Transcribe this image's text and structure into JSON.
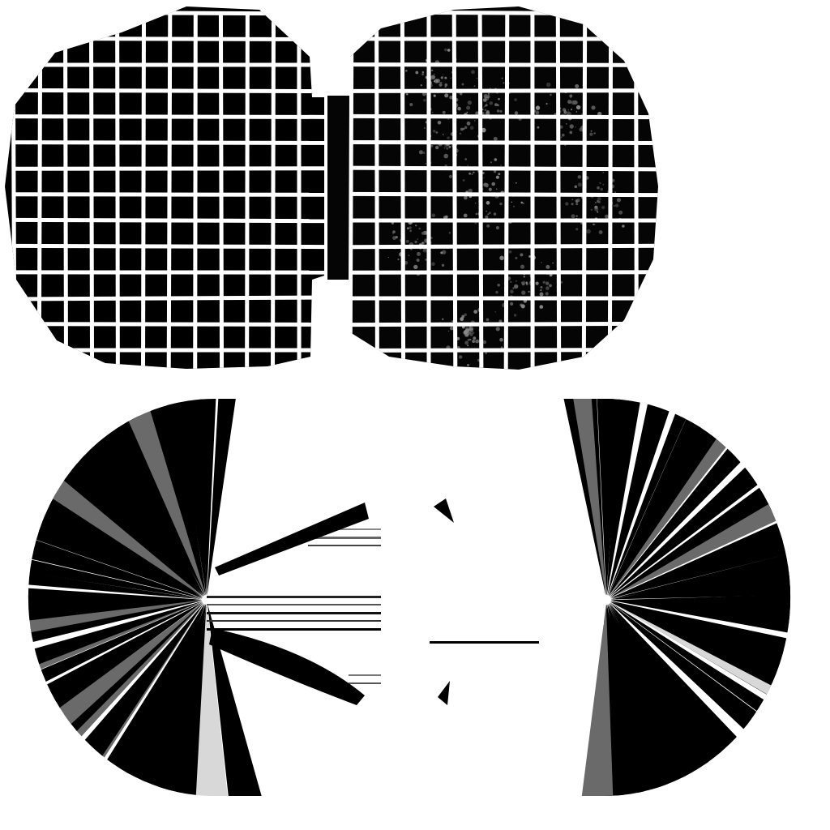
{
  "texture_atlas": {
    "background_color": "#ffffff",
    "ink_color": "#000000",
    "grid_line_color": "#ffffff",
    "speckle_color": "#8a8a8a",
    "highlight_gray": "#bcbcbc",
    "panels": [
      {
        "id": "grid-disc-clean",
        "pattern": "grid",
        "weathered": false
      },
      {
        "id": "grid-disc-weathered",
        "pattern": "grid",
        "weathered": true
      },
      {
        "id": "radial-disc-left",
        "pattern": "radial-stripes"
      },
      {
        "id": "radial-disc-right",
        "pattern": "radial-stripes"
      }
    ]
  }
}
